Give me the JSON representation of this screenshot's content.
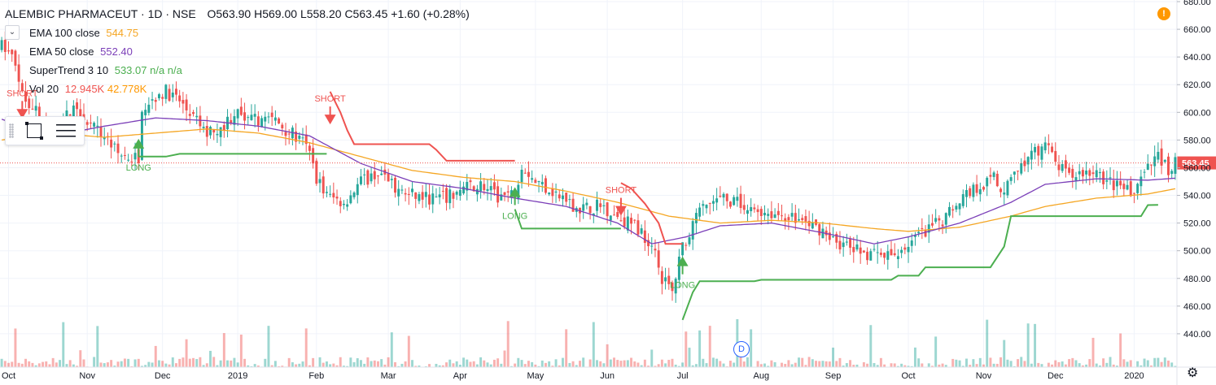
{
  "header": {
    "symbol": "ALEMBIC PHARMACEUT",
    "interval": "1D",
    "exchange": "NSE",
    "separator": "·",
    "open": "O563.90",
    "high": "H569.00",
    "low": "L558.20",
    "close": "C563.45",
    "change": "+1.60 (+0.28%)"
  },
  "indicators": [
    {
      "name": "EMA 100 close",
      "value": "544.75",
      "color": "#f5a623"
    },
    {
      "name": "EMA 50 close",
      "value": "552.40",
      "color": "#7b3fb8"
    },
    {
      "name": "SuperTrend 3 10",
      "value": "533.07",
      "extra": "n/a  n/a",
      "color": "#4caf50"
    },
    {
      "name": "Vol 20",
      "value": "12.945K",
      "extra": "42.778K",
      "color": "#ef5350"
    }
  ],
  "icons": {
    "collapse": "chevron-down-icon",
    "alert": "exclamation-icon",
    "settings": "gear-icon",
    "marker": "dividend-marker-icon"
  },
  "alert_symbol": "!",
  "settings_symbol": "⚙",
  "collapse_symbol": "⌄",
  "dividend_label": "D",
  "colors": {
    "up": "#26a69a",
    "down": "#ef5350",
    "ema100": "#f5a623",
    "ema50": "#7b3fb8",
    "st_up": "#4caf50",
    "st_down": "#ef5350",
    "price_line": "#ef5350"
  },
  "chart_data": {
    "type": "candlestick",
    "price_axis": {
      "min": 420,
      "max": 680,
      "ticks": [
        440,
        460,
        480,
        500,
        520,
        540,
        560,
        580,
        600,
        620,
        640,
        660,
        680
      ]
    },
    "last_price": 563.45,
    "time_axis": {
      "labels": [
        "Oct",
        "Nov",
        "Dec",
        "2019",
        "Feb",
        "Mar",
        "Apr",
        "May",
        "Jun",
        "Jul",
        "Aug",
        "Sep",
        "Oct",
        "Nov",
        "Dec",
        "2020"
      ]
    },
    "price_path": [
      [
        0,
        648
      ],
      [
        3,
        640
      ],
      [
        6,
        612
      ],
      [
        10,
        603
      ],
      [
        14,
        580
      ],
      [
        18,
        595
      ],
      [
        22,
        605
      ],
      [
        26,
        590
      ],
      [
        30,
        583
      ],
      [
        34,
        570
      ],
      [
        38,
        567
      ],
      [
        40,
        568
      ],
      [
        41,
        605
      ],
      [
        45,
        612
      ],
      [
        48,
        615
      ],
      [
        52,
        608
      ],
      [
        56,
        596
      ],
      [
        60,
        585
      ],
      [
        64,
        588
      ],
      [
        68,
        600
      ],
      [
        72,
        593
      ],
      [
        76,
        596
      ],
      [
        80,
        594
      ],
      [
        84,
        586
      ],
      [
        88,
        578
      ],
      [
        90,
        570
      ],
      [
        92,
        553
      ],
      [
        95,
        540
      ],
      [
        100,
        535
      ],
      [
        105,
        550
      ],
      [
        110,
        556
      ],
      [
        115,
        545
      ],
      [
        120,
        540
      ],
      [
        125,
        538
      ],
      [
        130,
        538
      ],
      [
        135,
        545
      ],
      [
        140,
        548
      ],
      [
        145,
        538
      ],
      [
        150,
        542
      ],
      [
        152,
        563
      ],
      [
        156,
        550
      ],
      [
        160,
        545
      ],
      [
        165,
        535
      ],
      [
        170,
        530
      ],
      [
        175,
        533
      ],
      [
        180,
        525
      ],
      [
        185,
        518
      ],
      [
        190,
        505
      ],
      [
        193,
        480
      ],
      [
        196,
        470
      ],
      [
        199,
        503
      ],
      [
        202,
        520
      ],
      [
        205,
        532
      ],
      [
        210,
        537
      ],
      [
        215,
        535
      ],
      [
        220,
        530
      ],
      [
        225,
        527
      ],
      [
        230,
        525
      ],
      [
        235,
        520
      ],
      [
        240,
        515
      ],
      [
        245,
        505
      ],
      [
        250,
        500
      ],
      [
        255,
        497
      ],
      [
        260,
        495
      ],
      [
        265,
        505
      ],
      [
        270,
        514
      ],
      [
        275,
        522
      ],
      [
        280,
        538
      ],
      [
        285,
        546
      ],
      [
        290,
        553
      ],
      [
        292,
        540
      ],
      [
        295,
        556
      ],
      [
        300,
        565
      ],
      [
        305,
        578
      ],
      [
        308,
        563
      ],
      [
        312,
        553
      ],
      [
        316,
        557
      ],
      [
        320,
        555
      ],
      [
        325,
        548
      ],
      [
        330,
        542
      ],
      [
        335,
        558
      ],
      [
        338,
        570
      ],
      [
        342,
        555
      ],
      [
        343,
        563
      ]
    ],
    "ema100": [
      [
        0,
        580
      ],
      [
        15,
        585
      ],
      [
        30,
        582
      ],
      [
        45,
        585
      ],
      [
        60,
        588
      ],
      [
        75,
        585
      ],
      [
        90,
        578
      ],
      [
        105,
        568
      ],
      [
        120,
        558
      ],
      [
        135,
        553
      ],
      [
        150,
        550
      ],
      [
        165,
        543
      ],
      [
        180,
        535
      ],
      [
        195,
        525
      ],
      [
        210,
        520
      ],
      [
        225,
        522
      ],
      [
        240,
        520
      ],
      [
        255,
        516
      ],
      [
        265,
        514
      ],
      [
        280,
        517
      ],
      [
        295,
        525
      ],
      [
        305,
        532
      ],
      [
        320,
        538
      ],
      [
        335,
        541
      ],
      [
        343,
        544.75
      ]
    ],
    "ema50": [
      [
        0,
        595
      ],
      [
        15,
        583
      ],
      [
        30,
        590
      ],
      [
        45,
        596
      ],
      [
        60,
        594
      ],
      [
        75,
        590
      ],
      [
        90,
        583
      ],
      [
        105,
        563
      ],
      [
        120,
        550
      ],
      [
        135,
        545
      ],
      [
        150,
        538
      ],
      [
        165,
        532
      ],
      [
        180,
        520
      ],
      [
        190,
        505
      ],
      [
        200,
        510
      ],
      [
        210,
        518
      ],
      [
        225,
        520
      ],
      [
        240,
        513
      ],
      [
        255,
        505
      ],
      [
        265,
        510
      ],
      [
        280,
        520
      ],
      [
        295,
        535
      ],
      [
        305,
        548
      ],
      [
        320,
        552
      ],
      [
        335,
        551
      ],
      [
        343,
        552.4
      ]
    ],
    "supertrend": [
      {
        "trend": "up",
        "points": [
          [
            40,
            568
          ],
          [
            48,
            568
          ],
          [
            52,
            570
          ],
          [
            95,
            570
          ]
        ]
      },
      {
        "trend": "down",
        "points": [
          [
            96,
            615
          ],
          [
            99,
            600
          ],
          [
            101,
            587
          ],
          [
            103,
            577
          ],
          [
            125,
            577
          ],
          [
            127,
            573
          ],
          [
            130,
            565
          ],
          [
            150,
            565
          ]
        ]
      },
      {
        "trend": "up",
        "points": [
          [
            150,
            530
          ],
          [
            152,
            516
          ],
          [
            175,
            516
          ],
          [
            181,
            516
          ]
        ]
      },
      {
        "trend": "down",
        "points": [
          [
            181,
            549
          ],
          [
            184,
            545
          ],
          [
            188,
            534
          ],
          [
            192,
            520
          ],
          [
            194,
            505
          ],
          [
            196,
            505
          ],
          [
            199,
            505
          ]
        ]
      },
      {
        "trend": "up",
        "points": [
          [
            199,
            450
          ],
          [
            202,
            470
          ],
          [
            204,
            478
          ],
          [
            220,
            478
          ],
          [
            222,
            479
          ],
          [
            260,
            479
          ],
          [
            262,
            482
          ],
          [
            268,
            482
          ],
          [
            270,
            488
          ],
          [
            289,
            488
          ],
          [
            293,
            503
          ],
          [
            295,
            525
          ],
          [
            333,
            525
          ],
          [
            335,
            533
          ],
          [
            338,
            533.07
          ]
        ]
      }
    ],
    "signals": [
      {
        "type": "SHORT",
        "bar": 6,
        "price": 600
      },
      {
        "type": "LONG",
        "bar": 40,
        "price": 568
      },
      {
        "type": "SHORT",
        "bar": 96,
        "price": 596
      },
      {
        "type": "LONG",
        "bar": 150,
        "price": 533
      },
      {
        "type": "SHORT",
        "bar": 181,
        "price": 530
      },
      {
        "type": "LONG",
        "bar": 199,
        "price": 483
      }
    ]
  }
}
